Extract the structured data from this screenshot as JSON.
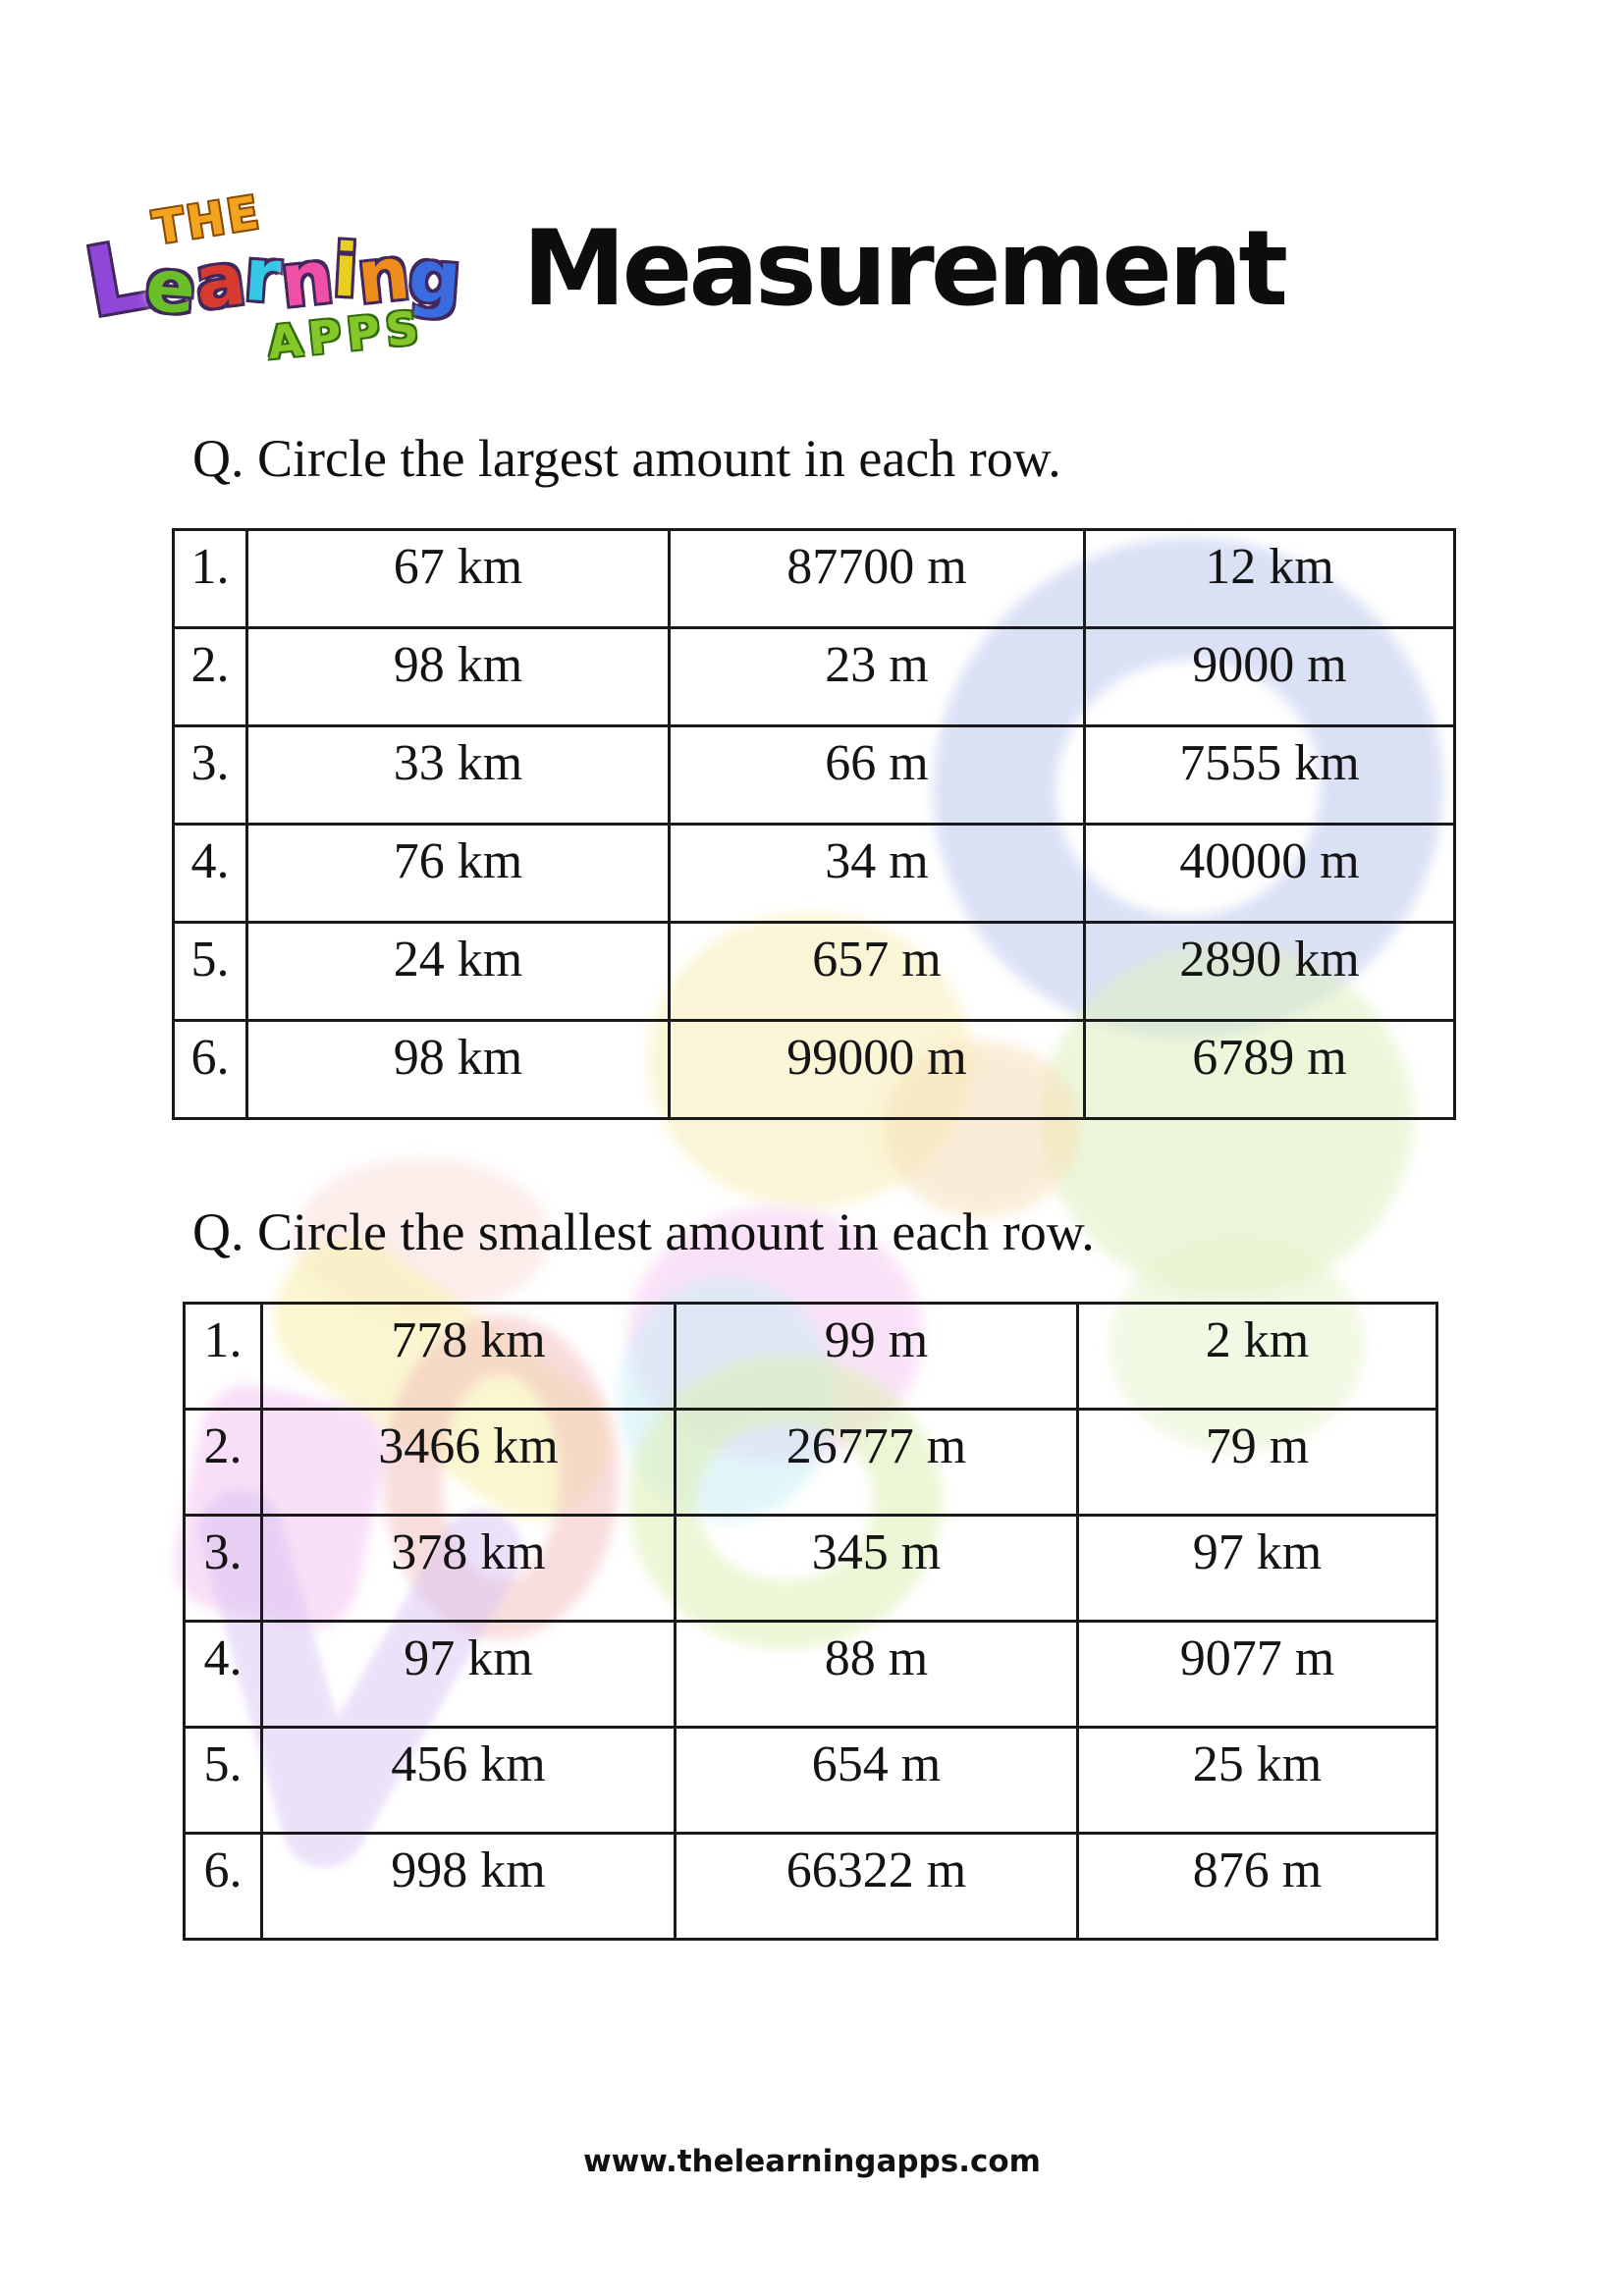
{
  "page": {
    "title": "Measurement",
    "footer_url": "www.thelearningapps.com"
  },
  "logo": {
    "the": "THE",
    "learning_letters": [
      {
        "ch": "L",
        "color": "#9046d8"
      },
      {
        "ch": "e",
        "color": "#6abf28"
      },
      {
        "ch": "a",
        "color": "#d93a30"
      },
      {
        "ch": "r",
        "color": "#35c7e3"
      },
      {
        "ch": "n",
        "color": "#ef4fa4"
      },
      {
        "ch": "i",
        "color": "#e8cf1f"
      },
      {
        "ch": "n",
        "color": "#ef8c1e"
      },
      {
        "ch": "g",
        "color": "#3a6ce0"
      }
    ],
    "apps": "APPS",
    "the_color": "#f2a41e",
    "apps_color": "#85c72a"
  },
  "q1": {
    "prompt": "Q. Circle the largest amount in each row.",
    "rows": [
      {
        "num": "1.",
        "cells": [
          "67 km",
          "87700 m",
          "12 km"
        ]
      },
      {
        "num": "2.",
        "cells": [
          "98 km",
          "23 m",
          "9000 m"
        ]
      },
      {
        "num": "3.",
        "cells": [
          "33 km",
          "66 m",
          "7555 km"
        ]
      },
      {
        "num": "4.",
        "cells": [
          "76 km",
          "34 m",
          "40000 m"
        ]
      },
      {
        "num": "5.",
        "cells": [
          "24 km",
          "657 m",
          "2890 km"
        ]
      },
      {
        "num": "6.",
        "cells": [
          "98 km",
          "99000 m",
          "6789 m"
        ]
      }
    ]
  },
  "q2": {
    "prompt": "Q. Circle the smallest amount in each row.",
    "rows": [
      {
        "num": "1.",
        "cells": [
          "778 km",
          "99 m",
          "2 km"
        ]
      },
      {
        "num": "2.",
        "cells": [
          "3466 km",
          "26777 m",
          "79 m"
        ]
      },
      {
        "num": "3.",
        "cells": [
          "378 km",
          "345 m",
          "97 km"
        ]
      },
      {
        "num": "4.",
        "cells": [
          "97 km",
          "88 m",
          "9077 m"
        ]
      },
      {
        "num": "5.",
        "cells": [
          "456 km",
          "654 m",
          "25 km"
        ]
      },
      {
        "num": "6.",
        "cells": [
          "998 km",
          "66322 m",
          "876 m"
        ]
      }
    ]
  },
  "colors": {
    "text": "#141414",
    "table_border": "#1a1a1a"
  }
}
